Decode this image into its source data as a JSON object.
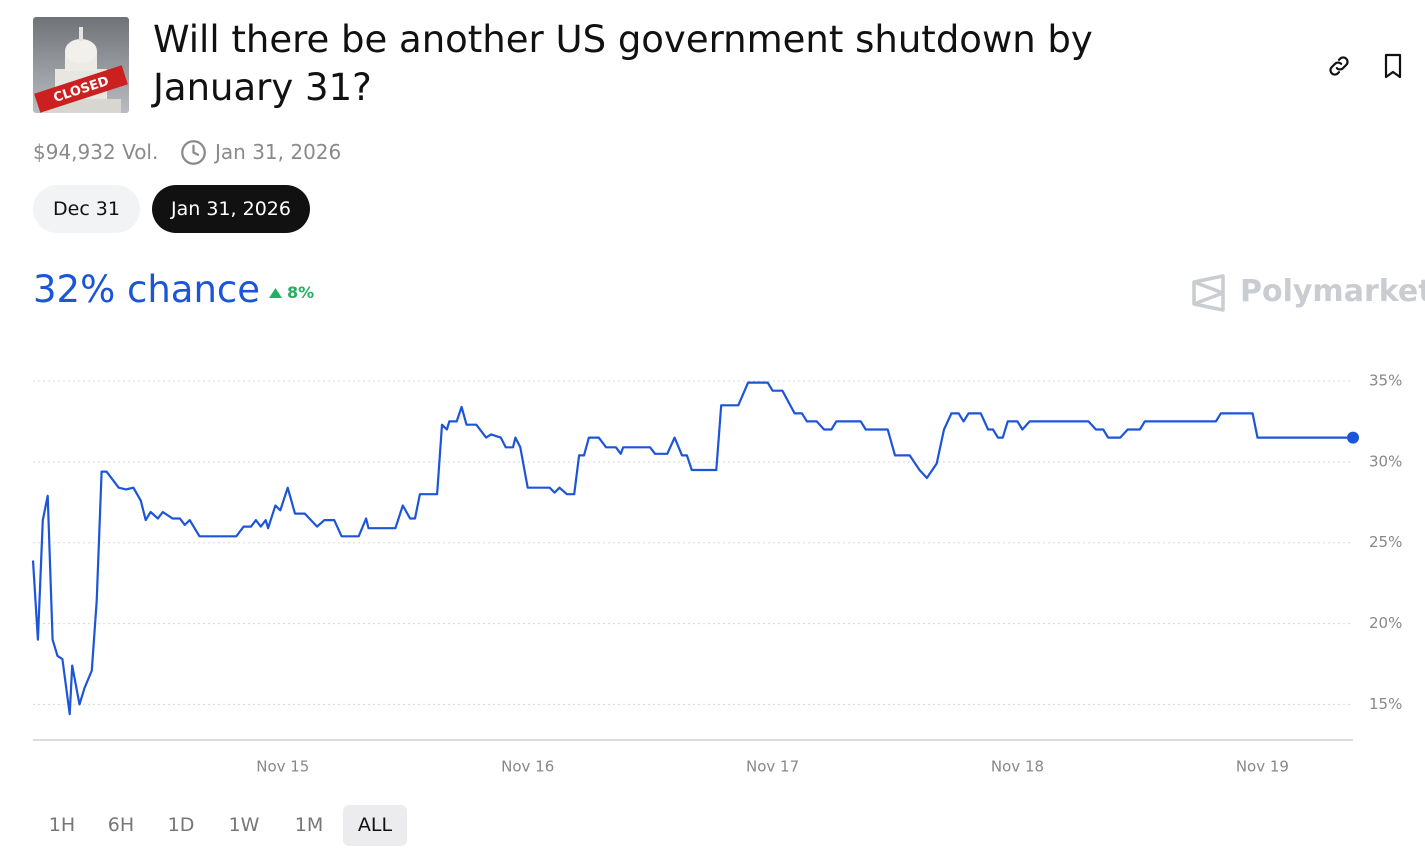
{
  "header": {
    "title": "Will there be another US government shutdown by January 31?",
    "image_text": "CLOSED",
    "volume": "$94,932 Vol.",
    "end_date": "Jan 31, 2026"
  },
  "tabs": [
    "Dec 31",
    "Jan 31, 2026"
  ],
  "chance": "32% chance",
  "change": "8%",
  "brand": "Polymarket",
  "time_ranges": [
    "1H",
    "6H",
    "1D",
    "1W",
    "1M",
    "ALL"
  ],
  "chart_data": {
    "type": "line",
    "color": "#1d55d8",
    "grid": true,
    "x": [
      13.98,
      14.0,
      14.02,
      14.04,
      14.06,
      14.08,
      14.1,
      14.13,
      14.14,
      14.17,
      14.19,
      14.22,
      14.24,
      14.26,
      14.28,
      14.33,
      14.36,
      14.39,
      14.42,
      14.44,
      14.46,
      14.49,
      14.51,
      14.55,
      14.58,
      14.6,
      14.62,
      14.66,
      14.81,
      14.84,
      14.87,
      14.89,
      14.91,
      14.93,
      14.94,
      14.97,
      14.99,
      15.02,
      15.05,
      15.09,
      15.14,
      15.17,
      15.21,
      15.24,
      15.31,
      15.34,
      15.35,
      15.46,
      15.49,
      15.52,
      15.54,
      15.56,
      15.63,
      15.65,
      15.67,
      15.68,
      15.71,
      15.73,
      15.75,
      15.79,
      15.83,
      15.85,
      15.89,
      15.91,
      15.94,
      15.95,
      15.97,
      16.0,
      16.09,
      16.11,
      16.13,
      16.16,
      16.19,
      16.21,
      16.23,
      16.25,
      16.29,
      16.32,
      16.36,
      16.38,
      16.39,
      16.5,
      16.52,
      16.57,
      16.6,
      16.63,
      16.65,
      16.67,
      16.77,
      16.79,
      16.86,
      16.9,
      16.98,
      17.0,
      17.04,
      17.09,
      17.12,
      17.14,
      17.18,
      17.21,
      17.24,
      17.26,
      17.36,
      17.38,
      17.47,
      17.5,
      17.56,
      17.6,
      17.63,
      17.67,
      17.7,
      17.73,
      17.76,
      17.78,
      17.8,
      17.85,
      17.88,
      17.9,
      17.92,
      17.94,
      17.96,
      18.0,
      18.02,
      18.05,
      18.29,
      18.32,
      18.35,
      18.37,
      18.42,
      18.45,
      18.5,
      18.52,
      18.81,
      18.83,
      18.96,
      18.98,
      19.37
    ],
    "values": [
      23.9,
      19,
      26.4,
      27.9,
      19,
      18,
      17.8,
      14.4,
      17.4,
      15,
      16,
      17.1,
      21.4,
      29.4,
      29.4,
      28.4,
      28.3,
      28.4,
      27.6,
      26.4,
      26.9,
      26.5,
      26.9,
      26.5,
      26.5,
      26.1,
      26.4,
      25.4,
      25.4,
      26,
      26,
      26.4,
      26,
      26.4,
      25.9,
      27.3,
      27,
      28.4,
      26.8,
      26.8,
      26,
      26.4,
      26.4,
      25.4,
      25.4,
      26.5,
      25.9,
      25.9,
      27.3,
      26.5,
      26.5,
      28,
      28,
      32.3,
      32,
      32.5,
      32.5,
      33.4,
      32.3,
      32.3,
      31.5,
      31.7,
      31.5,
      30.9,
      30.9,
      31.5,
      30.9,
      28.4,
      28.4,
      28.1,
      28.4,
      28,
      28,
      30.4,
      30.4,
      31.5,
      31.5,
      30.9,
      30.9,
      30.5,
      30.9,
      30.9,
      30.5,
      30.5,
      31.5,
      30.4,
      30.4,
      29.5,
      29.5,
      33.5,
      33.5,
      34.9,
      34.9,
      34.4,
      34.4,
      33,
      33,
      32.5,
      32.5,
      32,
      32,
      32.5,
      32.5,
      32,
      32,
      30.4,
      30.4,
      29.5,
      29,
      29.9,
      32,
      33,
      33,
      32.5,
      33,
      33,
      32,
      32,
      31.5,
      31.5,
      32.5,
      32.5,
      32,
      32.5,
      32.5,
      32,
      32,
      31.5,
      31.5,
      32,
      32,
      32.5,
      32.5,
      33,
      33,
      31.5,
      31.5
    ],
    "xlim": [
      13.98,
      19.37
    ],
    "ylim": [
      12.8,
      36.3
    ],
    "xticks": [
      {
        "value": 15,
        "label": "Nov 15"
      },
      {
        "value": 16,
        "label": "Nov 16"
      },
      {
        "value": 17,
        "label": "Nov 17"
      },
      {
        "value": 18,
        "label": "Nov 18"
      },
      {
        "value": 19,
        "label": "Nov 19"
      }
    ],
    "yticks": [
      {
        "value": 15,
        "label": "15%"
      },
      {
        "value": 20,
        "label": "20%"
      },
      {
        "value": 25,
        "label": "25%"
      },
      {
        "value": 30,
        "label": "30%"
      },
      {
        "value": 35,
        "label": "35%"
      }
    ]
  }
}
